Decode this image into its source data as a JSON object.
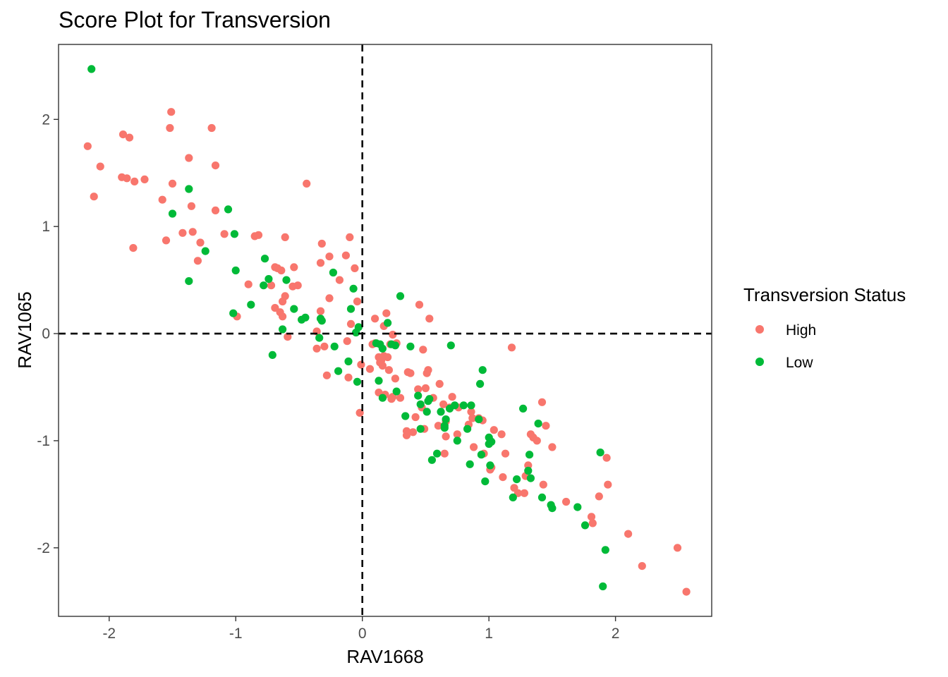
{
  "chart_data": {
    "type": "scatter",
    "title": "Score Plot for Transversion",
    "xlabel": "RAV1668",
    "ylabel": "RAV1065",
    "xlim": [
      -2.4,
      2.76
    ],
    "ylim": [
      -2.64,
      2.7
    ],
    "x_ticks": [
      -2,
      -1,
      0,
      1,
      2
    ],
    "y_ticks": [
      -2,
      -1,
      0,
      1,
      2
    ],
    "x_tick_labels": [
      "-2",
      "-1",
      "0",
      "1",
      "2"
    ],
    "y_tick_labels": [
      "-2",
      "-1",
      "0",
      "1",
      "2"
    ],
    "reference_lines": {
      "x": 0,
      "y": 0,
      "style": "dashed"
    },
    "grid": false,
    "legend": {
      "title": "Transversion Status",
      "position": "right"
    },
    "series": [
      {
        "name": "High",
        "color": "#F8766D",
        "points": [
          [
            -2.17,
            1.75
          ],
          [
            -2.12,
            1.28
          ],
          [
            -2.07,
            1.56
          ],
          [
            -1.9,
            1.46
          ],
          [
            -1.89,
            1.86
          ],
          [
            -1.86,
            1.45
          ],
          [
            -1.84,
            1.83
          ],
          [
            -1.81,
            0.8
          ],
          [
            -1.8,
            1.42
          ],
          [
            -1.72,
            1.44
          ],
          [
            -1.58,
            1.25
          ],
          [
            -1.55,
            0.87
          ],
          [
            -1.52,
            1.92
          ],
          [
            -1.51,
            2.07
          ],
          [
            -1.5,
            1.4
          ],
          [
            -1.42,
            0.94
          ],
          [
            -1.37,
            1.64
          ],
          [
            -1.35,
            1.19
          ],
          [
            -1.34,
            0.95
          ],
          [
            -1.3,
            0.68
          ],
          [
            -1.28,
            0.85
          ],
          [
            -1.19,
            1.92
          ],
          [
            -1.16,
            1.15
          ],
          [
            -1.16,
            1.57
          ],
          [
            -1.09,
            0.93
          ],
          [
            -0.99,
            0.16
          ],
          [
            -0.9,
            0.46
          ],
          [
            -0.85,
            0.91
          ],
          [
            -0.82,
            0.92
          ],
          [
            -0.72,
            0.45
          ],
          [
            -0.69,
            0.24
          ],
          [
            -0.69,
            0.62
          ],
          [
            -0.67,
            0.61
          ],
          [
            -0.65,
            0.2
          ],
          [
            -0.64,
            0.59
          ],
          [
            -0.63,
            0.3
          ],
          [
            -0.63,
            0.16
          ],
          [
            -0.61,
            0.9
          ],
          [
            -0.61,
            0.35
          ],
          [
            -0.59,
            -0.03
          ],
          [
            -0.55,
            0.44
          ],
          [
            -0.54,
            0.62
          ],
          [
            -0.51,
            0.45
          ],
          [
            -0.44,
            1.4
          ],
          [
            -0.36,
            -0.14
          ],
          [
            -0.36,
            0.02
          ],
          [
            -0.33,
            0.21
          ],
          [
            -0.33,
            0.66
          ],
          [
            -0.32,
            0.84
          ],
          [
            -0.3,
            -0.12
          ],
          [
            -0.28,
            -0.39
          ],
          [
            -0.26,
            0.33
          ],
          [
            -0.26,
            0.72
          ],
          [
            -0.18,
            0.5
          ],
          [
            -0.13,
            0.73
          ],
          [
            -0.12,
            -0.07
          ],
          [
            -0.11,
            -0.41
          ],
          [
            -0.1,
            0.9
          ],
          [
            -0.09,
            0.09
          ],
          [
            -0.06,
            0.61
          ],
          [
            -0.04,
            0.3
          ],
          [
            -0.02,
            -0.74
          ],
          [
            -0.01,
            -0.29
          ],
          [
            0.06,
            -0.33
          ],
          [
            0.08,
            -0.1
          ],
          [
            0.1,
            0.14
          ],
          [
            0.1,
            -0.09
          ],
          [
            0.13,
            -0.55
          ],
          [
            0.13,
            -0.22
          ],
          [
            0.14,
            -0.27
          ],
          [
            0.15,
            -0.25
          ],
          [
            0.16,
            -0.3
          ],
          [
            0.17,
            0.07
          ],
          [
            0.17,
            -0.21
          ],
          [
            0.18,
            -0.57
          ],
          [
            0.19,
            0.19
          ],
          [
            0.2,
            -0.22
          ],
          [
            0.21,
            -0.34
          ],
          [
            0.22,
            -0.1
          ],
          [
            0.23,
            -0.61
          ],
          [
            0.24,
            -0.01
          ],
          [
            0.24,
            -0.59
          ],
          [
            0.26,
            -0.42
          ],
          [
            0.27,
            -0.09
          ],
          [
            0.3,
            -0.6
          ],
          [
            0.35,
            -0.95
          ],
          [
            0.35,
            -0.91
          ],
          [
            0.36,
            -0.36
          ],
          [
            0.38,
            -0.37
          ],
          [
            0.4,
            -0.92
          ],
          [
            0.42,
            -0.78
          ],
          [
            0.44,
            -0.52
          ],
          [
            0.45,
            0.27
          ],
          [
            0.47,
            -0.69
          ],
          [
            0.48,
            -0.15
          ],
          [
            0.49,
            -0.89
          ],
          [
            0.5,
            -0.51
          ],
          [
            0.51,
            -0.37
          ],
          [
            0.52,
            -0.34
          ],
          [
            0.53,
            0.14
          ],
          [
            0.56,
            -0.6
          ],
          [
            0.6,
            -0.86
          ],
          [
            0.61,
            -0.47
          ],
          [
            0.64,
            -0.66
          ],
          [
            0.65,
            -1.12
          ],
          [
            0.66,
            -0.96
          ],
          [
            0.66,
            -0.82
          ],
          [
            0.69,
            -0.69
          ],
          [
            0.71,
            -0.59
          ],
          [
            0.75,
            -0.94
          ],
          [
            0.76,
            -0.69
          ],
          [
            0.84,
            -0.85
          ],
          [
            0.86,
            -0.73
          ],
          [
            0.87,
            -0.79
          ],
          [
            0.88,
            -1.06
          ],
          [
            0.92,
            -0.79
          ],
          [
            0.95,
            -0.81
          ],
          [
            0.96,
            -1.12
          ],
          [
            1.01,
            -1.27
          ],
          [
            1.02,
            -1.25
          ],
          [
            1.04,
            -0.9
          ],
          [
            1.1,
            -0.94
          ],
          [
            1.11,
            -1.34
          ],
          [
            1.13,
            -1.12
          ],
          [
            1.18,
            -0.13
          ],
          [
            1.2,
            -1.44
          ],
          [
            1.23,
            -1.49
          ],
          [
            1.28,
            -1.49
          ],
          [
            1.29,
            -1.33
          ],
          [
            1.31,
            -1.23
          ],
          [
            1.33,
            -0.94
          ],
          [
            1.35,
            -0.97
          ],
          [
            1.38,
            -1.0
          ],
          [
            1.42,
            -0.64
          ],
          [
            1.43,
            -1.41
          ],
          [
            1.45,
            -0.86
          ],
          [
            1.5,
            -1.06
          ],
          [
            1.61,
            -1.57
          ],
          [
            1.81,
            -1.71
          ],
          [
            1.82,
            -1.77
          ],
          [
            1.87,
            -1.52
          ],
          [
            1.93,
            -1.16
          ],
          [
            1.94,
            -1.41
          ],
          [
            2.1,
            -1.87
          ],
          [
            2.21,
            -2.17
          ],
          [
            2.49,
            -2.0
          ],
          [
            2.56,
            -2.41
          ]
        ]
      },
      {
        "name": "Low",
        "color": "#00BA38",
        "points": [
          [
            -2.14,
            2.47
          ],
          [
            -1.5,
            1.12
          ],
          [
            -1.37,
            1.35
          ],
          [
            -1.37,
            0.49
          ],
          [
            -1.24,
            0.77
          ],
          [
            -1.06,
            1.16
          ],
          [
            -1.02,
            0.19
          ],
          [
            -1.01,
            0.93
          ],
          [
            -1.0,
            0.59
          ],
          [
            -0.88,
            0.27
          ],
          [
            -0.78,
            0.45
          ],
          [
            -0.77,
            0.7
          ],
          [
            -0.74,
            0.51
          ],
          [
            -0.71,
            -0.2
          ],
          [
            -0.63,
            0.04
          ],
          [
            -0.6,
            0.5
          ],
          [
            -0.54,
            0.23
          ],
          [
            -0.48,
            0.13
          ],
          [
            -0.45,
            0.15
          ],
          [
            -0.34,
            -0.04
          ],
          [
            -0.33,
            0.14
          ],
          [
            -0.32,
            0.12
          ],
          [
            -0.23,
            0.57
          ],
          [
            -0.22,
            -0.12
          ],
          [
            -0.19,
            -0.35
          ],
          [
            -0.11,
            -0.26
          ],
          [
            -0.09,
            0.23
          ],
          [
            -0.07,
            0.42
          ],
          [
            -0.05,
            0.01
          ],
          [
            -0.04,
            -0.45
          ],
          [
            -0.03,
            0.06
          ],
          [
            0.11,
            -0.09
          ],
          [
            0.13,
            -0.44
          ],
          [
            0.14,
            -0.1
          ],
          [
            0.16,
            -0.14
          ],
          [
            0.16,
            -0.6
          ],
          [
            0.2,
            0.1
          ],
          [
            0.23,
            -0.1
          ],
          [
            0.26,
            -0.11
          ],
          [
            0.27,
            -0.54
          ],
          [
            0.3,
            0.35
          ],
          [
            0.34,
            -0.77
          ],
          [
            0.38,
            -0.12
          ],
          [
            0.44,
            -0.58
          ],
          [
            0.46,
            -0.66
          ],
          [
            0.46,
            -0.89
          ],
          [
            0.51,
            -0.73
          ],
          [
            0.52,
            -0.63
          ],
          [
            0.53,
            -0.61
          ],
          [
            0.55,
            -1.18
          ],
          [
            0.59,
            -1.12
          ],
          [
            0.62,
            -0.73
          ],
          [
            0.65,
            -0.88
          ],
          [
            0.65,
            -0.86
          ],
          [
            0.66,
            -0.8
          ],
          [
            0.69,
            -0.7
          ],
          [
            0.7,
            -0.11
          ],
          [
            0.73,
            -0.67
          ],
          [
            0.75,
            -1.0
          ],
          [
            0.8,
            -0.67
          ],
          [
            0.83,
            -0.89
          ],
          [
            0.85,
            -1.22
          ],
          [
            0.86,
            -0.67
          ],
          [
            0.92,
            -0.8
          ],
          [
            0.93,
            -0.47
          ],
          [
            0.94,
            -1.13
          ],
          [
            0.95,
            -0.34
          ],
          [
            0.97,
            -1.38
          ],
          [
            1.0,
            -1.03
          ],
          [
            1.0,
            -0.97
          ],
          [
            1.01,
            -1.23
          ],
          [
            1.02,
            -1.01
          ],
          [
            1.19,
            -1.53
          ],
          [
            1.22,
            -1.36
          ],
          [
            1.27,
            -0.7
          ],
          [
            1.31,
            -1.28
          ],
          [
            1.32,
            -1.13
          ],
          [
            1.33,
            -1.35
          ],
          [
            1.39,
            -0.84
          ],
          [
            1.42,
            -1.53
          ],
          [
            1.49,
            -1.6
          ],
          [
            1.5,
            -1.63
          ],
          [
            1.7,
            -1.62
          ],
          [
            1.76,
            -1.79
          ],
          [
            1.88,
            -1.11
          ],
          [
            1.9,
            -2.36
          ],
          [
            1.92,
            -2.02
          ]
        ]
      }
    ]
  }
}
